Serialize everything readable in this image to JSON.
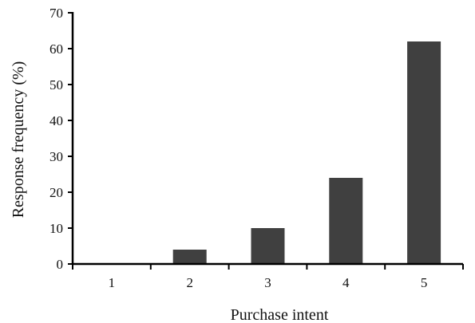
{
  "chart_data": {
    "type": "bar",
    "title": "",
    "xlabel": "Purchase intent",
    "ylabel": "Response frequency (%)",
    "categories": [
      "1",
      "2",
      "3",
      "4",
      "5"
    ],
    "values": [
      0,
      4,
      10,
      24,
      62
    ],
    "ylim": [
      0,
      70
    ],
    "yticks": [
      "0",
      "10",
      "20",
      "30",
      "40",
      "50",
      "60",
      "70"
    ],
    "grid": false,
    "legend": "none",
    "bar_color": "#404040",
    "axis_color": "#000000"
  }
}
